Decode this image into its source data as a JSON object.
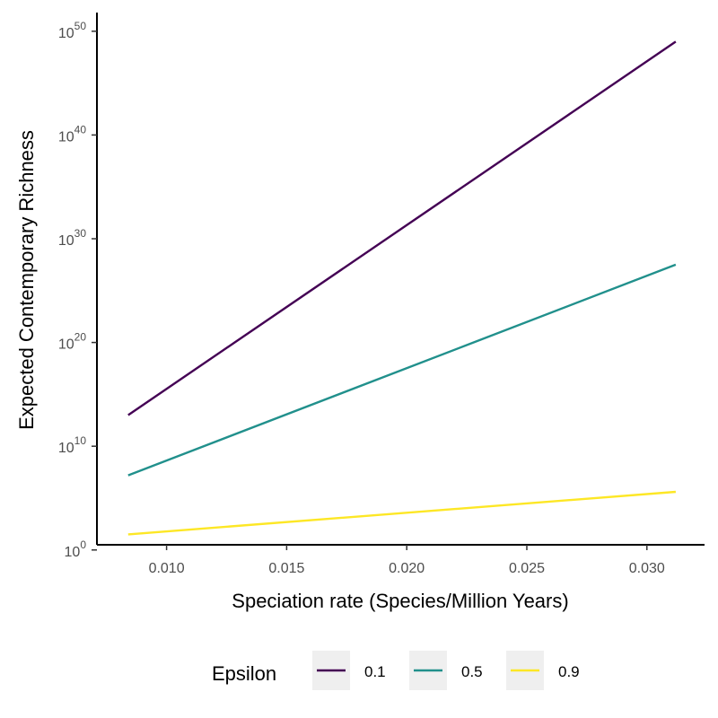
{
  "chart_data": {
    "type": "line",
    "title": "",
    "xlabel": "Speciation rate (Species/Million Years)",
    "ylabel": "Expected Contemporary Richness",
    "x_ticks": [
      "0.010",
      "0.015",
      "0.020",
      "0.025",
      "0.030"
    ],
    "x_tick_values": [
      0.01,
      0.015,
      0.02,
      0.025,
      0.03
    ],
    "y_scale": "log10",
    "y_tick_base": "10",
    "y_tick_exponents": [
      "0",
      "10",
      "20",
      "30",
      "40",
      "50"
    ],
    "xlim": [
      0.0071,
      0.0324
    ],
    "ylim_log10": [
      0.5,
      51.8
    ],
    "grid": false,
    "legend_position": "bottom",
    "legend_title": "Epsilon",
    "series": [
      {
        "name": "0.1",
        "color": "#440154",
        "x": [
          0.0084,
          0.0312
        ],
        "y_log10": [
          13.0,
          49.0
        ]
      },
      {
        "name": "0.5",
        "color": "#21908C",
        "x": [
          0.0084,
          0.0312
        ],
        "y_log10": [
          7.2,
          27.5
        ]
      },
      {
        "name": "0.9",
        "color": "#FDE725",
        "x": [
          0.0084,
          0.0312
        ],
        "y_log10": [
          1.5,
          5.6
        ]
      }
    ]
  }
}
